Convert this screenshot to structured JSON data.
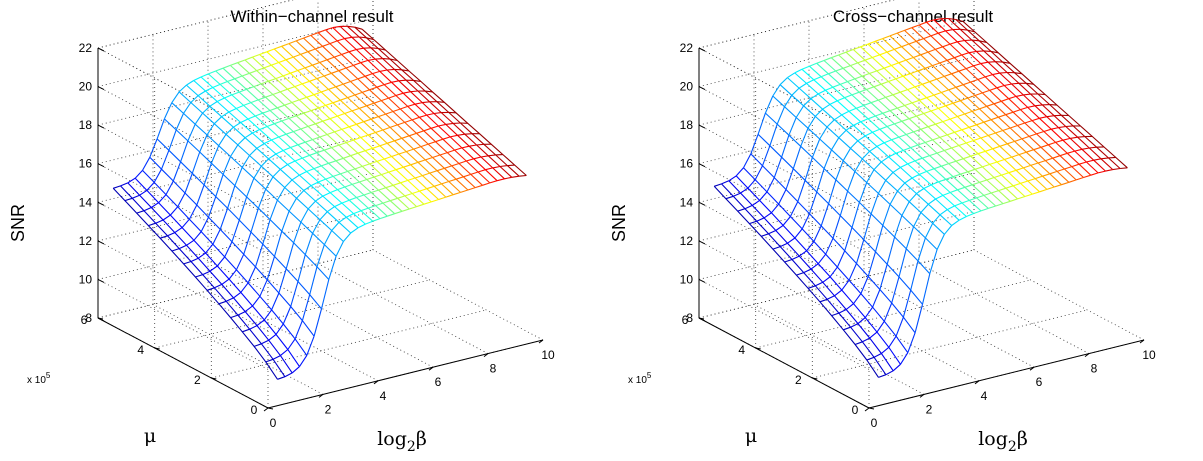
{
  "chart_data": [
    {
      "type": "surface3d",
      "title": "Within−channel result",
      "xlabel": "log",
      "xlabel_sub": "2",
      "xlabel_tail": "β",
      "ylabel": "μ",
      "zlabel": "SNR",
      "y_multiplier": "x 10",
      "y_multiplier_exp": "5",
      "xlim": [
        0,
        10
      ],
      "ylim": [
        0,
        6
      ],
      "zlim": [
        8,
        22
      ],
      "x_ticks": [
        "0",
        "2",
        "4",
        "6",
        "8",
        "10"
      ],
      "y_ticks": [
        "0",
        "2",
        "4",
        "6"
      ],
      "z_ticks": [
        "8",
        "10",
        "12",
        "14",
        "16",
        "18",
        "20",
        "22"
      ],
      "grid": true,
      "colormap": "jet",
      "surface_params": {
        "z_low_mu_start": 9.0,
        "z_high_mu_start": 14.7,
        "z_plateau_high": 19.1,
        "z_plateau_low": 16.0,
        "knee_x": 2.1
      }
    },
    {
      "type": "surface3d",
      "title": "Cross−channel result",
      "xlabel": "log",
      "xlabel_sub": "2",
      "xlabel_tail": "β",
      "ylabel": "μ",
      "zlabel": "SNR",
      "y_multiplier": "x 10",
      "y_multiplier_exp": "5",
      "xlim": [
        0,
        10
      ],
      "ylim": [
        0,
        6
      ],
      "zlim": [
        8,
        22
      ],
      "x_ticks": [
        "0",
        "2",
        "4",
        "6",
        "8",
        "10"
      ],
      "y_ticks": [
        "0",
        "2",
        "4",
        "6"
      ],
      "z_ticks": [
        "8",
        "10",
        "12",
        "14",
        "16",
        "18",
        "20",
        "22"
      ],
      "grid": true,
      "colormap": "jet",
      "surface_params": {
        "z_low_mu_start": 9.1,
        "z_high_mu_start": 14.8,
        "z_plateau_high": 19.5,
        "z_plateau_low": 16.4,
        "knee_x": 2.1
      }
    }
  ]
}
